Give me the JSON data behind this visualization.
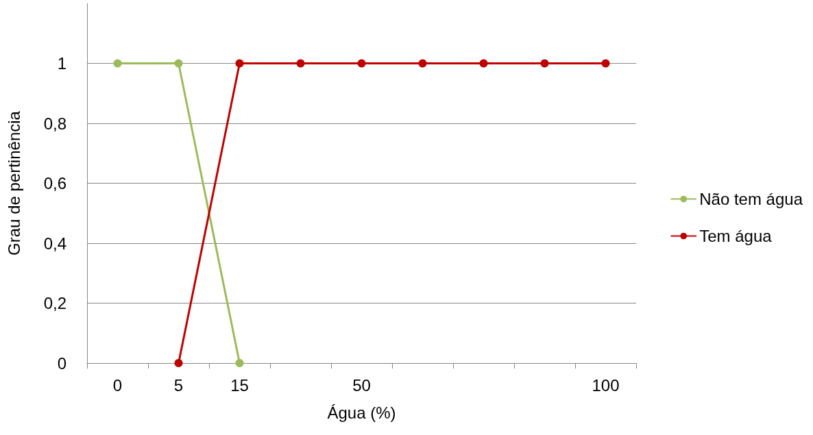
{
  "chart_data": {
    "type": "line",
    "xlabel": "Água (%)",
    "ylabel": "Grau de pertinência",
    "categories": [
      "0",
      "5",
      "15",
      null,
      "50",
      null,
      null,
      null,
      "100"
    ],
    "series": [
      {
        "name": "Não tem água",
        "color": "#9bbb59",
        "values": [
          1,
          1,
          0,
          null,
          null,
          null,
          null,
          null,
          null
        ]
      },
      {
        "name": "Tem água",
        "color": "#c00000",
        "values": [
          null,
          0,
          1,
          1,
          1,
          1,
          1,
          1,
          1
        ]
      }
    ],
    "ylim": [
      0,
      1.2
    ],
    "yticks": [
      0,
      {
        "value": 0.2,
        "label": "0,2"
      },
      {
        "value": 0.4,
        "label": "0,4"
      },
      {
        "value": 0.6,
        "label": "0,6"
      },
      {
        "value": 0.8,
        "label": "0,8"
      },
      1
    ],
    "grid": "y",
    "legend": "right",
    "marker": "circle",
    "line_style": "solid"
  }
}
